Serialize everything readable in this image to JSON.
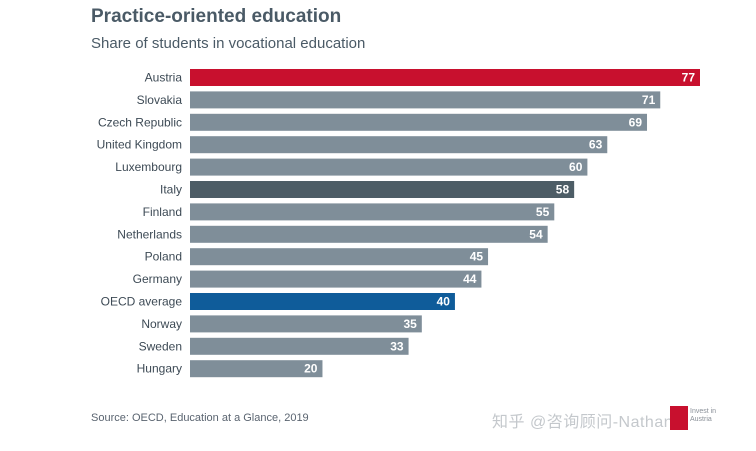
{
  "header": {
    "title": "Practice-oriented education",
    "subtitle": "Share of students in vocational education"
  },
  "source": "Source: OECD, Education at a Glance, 2019",
  "watermark": "知乎 @咨询顾问-Nathan",
  "logo": {
    "line1": "Invest in",
    "line2": "Austria"
  },
  "colors": {
    "default_bar": "#7f8e99",
    "austria": "#c8102e",
    "italy": "#4d5d66",
    "oecd": "#0f5c9a",
    "label_text": "#3d4a55",
    "value_text": "#ffffff"
  },
  "chart_data": {
    "type": "bar",
    "orientation": "horizontal",
    "title": "Practice-oriented education",
    "subtitle": "Share of students in vocational education",
    "xlabel": "",
    "ylabel": "",
    "xlim": [
      0,
      77
    ],
    "grid": false,
    "legend": "none",
    "categories": [
      "Austria",
      "Slovakia",
      "Czech Republic",
      "United Kingdom",
      "Luxembourg",
      "Italy",
      "Finland",
      "Netherlands",
      "Poland",
      "Germany",
      "OECD average",
      "Norway",
      "Sweden",
      "Hungary"
    ],
    "values": [
      77,
      71,
      69,
      63,
      60,
      58,
      55,
      54,
      45,
      44,
      40,
      35,
      33,
      20
    ],
    "highlights": {
      "Austria": "#c8102e",
      "Italy": "#4d5d66",
      "OECD average": "#0f5c9a"
    }
  }
}
